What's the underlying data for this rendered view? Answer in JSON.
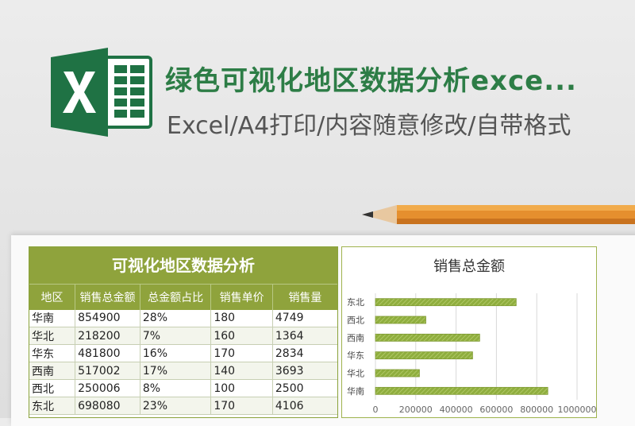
{
  "banner": {
    "title": "绿色可视化地区数据分析exce...",
    "subtitle": "Excel/A4打印/内容随意修改/自带格式",
    "logo_icon": "excel-logo-icon",
    "brand_color": "#1f7244",
    "title_color": "#2d7d46"
  },
  "table": {
    "title": "可视化地区数据分析",
    "header_color": "#8fa33c",
    "columns": [
      "地区",
      "销售总金额",
      "总金额占比",
      "销售单价",
      "销售量"
    ],
    "rows": [
      [
        "华南",
        "854900",
        "28%",
        "180",
        "4749"
      ],
      [
        "华北",
        "218200",
        "7%",
        "160",
        "1364"
      ],
      [
        "华东",
        "481800",
        "16%",
        "170",
        "2834"
      ],
      [
        "西南",
        "517002",
        "17%",
        "140",
        "3693"
      ],
      [
        "西北",
        "250006",
        "8%",
        "100",
        "2500"
      ],
      [
        "东北",
        "698080",
        "23%",
        "170",
        "4106"
      ]
    ]
  },
  "chart_data": {
    "type": "bar",
    "orientation": "horizontal",
    "title": "销售总金额",
    "categories": [
      "东北",
      "西北",
      "西南",
      "华东",
      "华北",
      "华南"
    ],
    "values": [
      698080,
      250006,
      517002,
      481800,
      218200,
      854900
    ],
    "xlim": [
      0,
      1000000
    ],
    "xticks": [
      "0",
      "200000",
      "400000",
      "600000",
      "800000",
      "1000000"
    ],
    "grid": true,
    "bar_color": "#8fae3e"
  }
}
